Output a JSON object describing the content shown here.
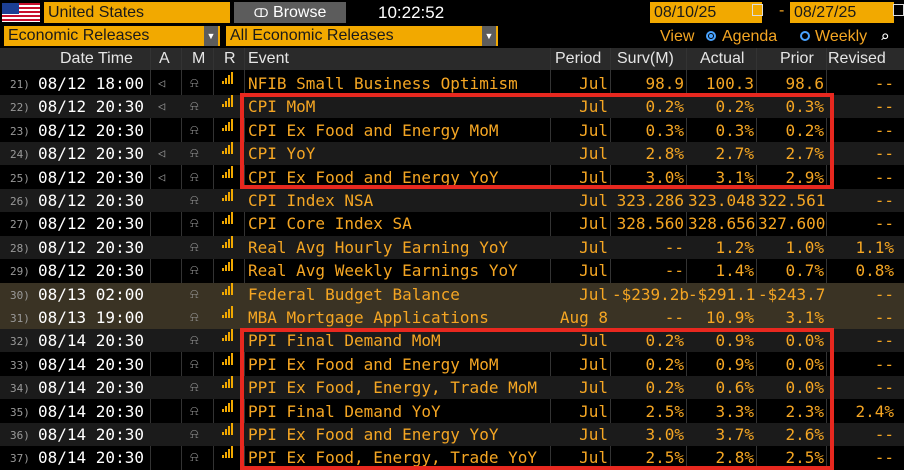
{
  "topbar": {
    "country": "United States",
    "browse_label": "Browse",
    "clock": "10:22:52",
    "date_from": "08/10/25",
    "date_to": "08/27/25",
    "date_sep": "-"
  },
  "filters": {
    "category": "Economic Releases",
    "subset": "All Economic Releases",
    "view_label": "View",
    "agenda_label": "Agenda",
    "weekly_label": "Weekly"
  },
  "columns": {
    "datetime": "Date Time",
    "a": "A",
    "m": "M",
    "r": "R",
    "event": "Event",
    "period": "Period",
    "surv": "Surv(M)",
    "actual": "Actual",
    "prior": "Prior",
    "revised": "Revised"
  },
  "rows": [
    {
      "n": "21)",
      "dt": "08/12 18:00",
      "alarm": true,
      "event": "NFIB Small Business Optimism",
      "period": "Jul",
      "surv": "98.9",
      "actual": "100.3",
      "prior": "98.6",
      "revised": "--"
    },
    {
      "n": "22)",
      "dt": "08/12 20:30",
      "alarm": true,
      "event": "CPI MoM",
      "period": "Jul",
      "surv": "0.2%",
      "actual": "0.2%",
      "prior": "0.3%",
      "revised": "--"
    },
    {
      "n": "23)",
      "dt": "08/12 20:30",
      "alarm": false,
      "event": "CPI Ex Food and Energy MoM",
      "period": "Jul",
      "surv": "0.3%",
      "actual": "0.3%",
      "prior": "0.2%",
      "revised": "--"
    },
    {
      "n": "24)",
      "dt": "08/12 20:30",
      "alarm": true,
      "event": "CPI YoY",
      "period": "Jul",
      "surv": "2.8%",
      "actual": "2.7%",
      "prior": "2.7%",
      "revised": "--"
    },
    {
      "n": "25)",
      "dt": "08/12 20:30",
      "alarm": true,
      "event": "CPI Ex Food and Energy YoY",
      "period": "Jul",
      "surv": "3.0%",
      "actual": "3.1%",
      "prior": "2.9%",
      "revised": "--"
    },
    {
      "n": "26)",
      "dt": "08/12 20:30",
      "alarm": false,
      "event": "CPI Index NSA",
      "period": "Jul",
      "surv": "323.286",
      "actual": "323.048",
      "prior": "322.561",
      "revised": "--"
    },
    {
      "n": "27)",
      "dt": "08/12 20:30",
      "alarm": false,
      "event": "CPI Core Index SA",
      "period": "Jul",
      "surv": "328.560",
      "actual": "328.656",
      "prior": "327.600",
      "revised": "--"
    },
    {
      "n": "28)",
      "dt": "08/12 20:30",
      "alarm": false,
      "event": "Real Avg Hourly Earning YoY",
      "period": "Jul",
      "surv": "--",
      "actual": "1.2%",
      "prior": "1.0%",
      "revised": "1.1%"
    },
    {
      "n": "29)",
      "dt": "08/12 20:30",
      "alarm": false,
      "event": "Real Avg Weekly Earnings YoY",
      "period": "Jul",
      "surv": "--",
      "actual": "1.4%",
      "prior": "0.7%",
      "revised": "0.8%"
    },
    {
      "n": "30)",
      "dt": "08/13 02:00",
      "alarm": false,
      "event": "Federal Budget Balance",
      "period": "Jul",
      "surv": "-$239.2b",
      "actual": "-$291.1",
      "prior": "-$243.7",
      "revised": "--"
    },
    {
      "n": "31)",
      "dt": "08/13 19:00",
      "alarm": false,
      "event": "MBA Mortgage Applications",
      "period": "Aug 8",
      "surv": "--",
      "actual": "10.9%",
      "prior": "3.1%",
      "revised": "--"
    },
    {
      "n": "32)",
      "dt": "08/14 20:30",
      "alarm": false,
      "event": "PPI Final Demand MoM",
      "period": "Jul",
      "surv": "0.2%",
      "actual": "0.9%",
      "prior": "0.0%",
      "revised": "--"
    },
    {
      "n": "33)",
      "dt": "08/14 20:30",
      "alarm": false,
      "event": "PPI Ex Food and Energy MoM",
      "period": "Jul",
      "surv": "0.2%",
      "actual": "0.9%",
      "prior": "0.0%",
      "revised": "--"
    },
    {
      "n": "34)",
      "dt": "08/14 20:30",
      "alarm": false,
      "event": "PPI Ex Food, Energy, Trade MoM",
      "period": "Jul",
      "surv": "0.2%",
      "actual": "0.6%",
      "prior": "0.0%",
      "revised": "--"
    },
    {
      "n": "35)",
      "dt": "08/14 20:30",
      "alarm": false,
      "event": "PPI Final Demand YoY",
      "period": "Jul",
      "surv": "2.5%",
      "actual": "3.3%",
      "prior": "2.3%",
      "revised": "2.4%"
    },
    {
      "n": "36)",
      "dt": "08/14 20:30",
      "alarm": false,
      "event": "PPI Ex Food and Energy YoY",
      "period": "Jul",
      "surv": "3.0%",
      "actual": "3.7%",
      "prior": "2.6%",
      "revised": "--"
    },
    {
      "n": "37)",
      "dt": "08/14 20:30",
      "alarm": false,
      "event": "PPI Ex Food, Energy, Trade YoY",
      "period": "Jul",
      "surv": "2.5%",
      "actual": "2.8%",
      "prior": "2.5%",
      "revised": "--"
    }
  ],
  "highlight_color": "#e8281f",
  "accent_color": "#f2a900"
}
